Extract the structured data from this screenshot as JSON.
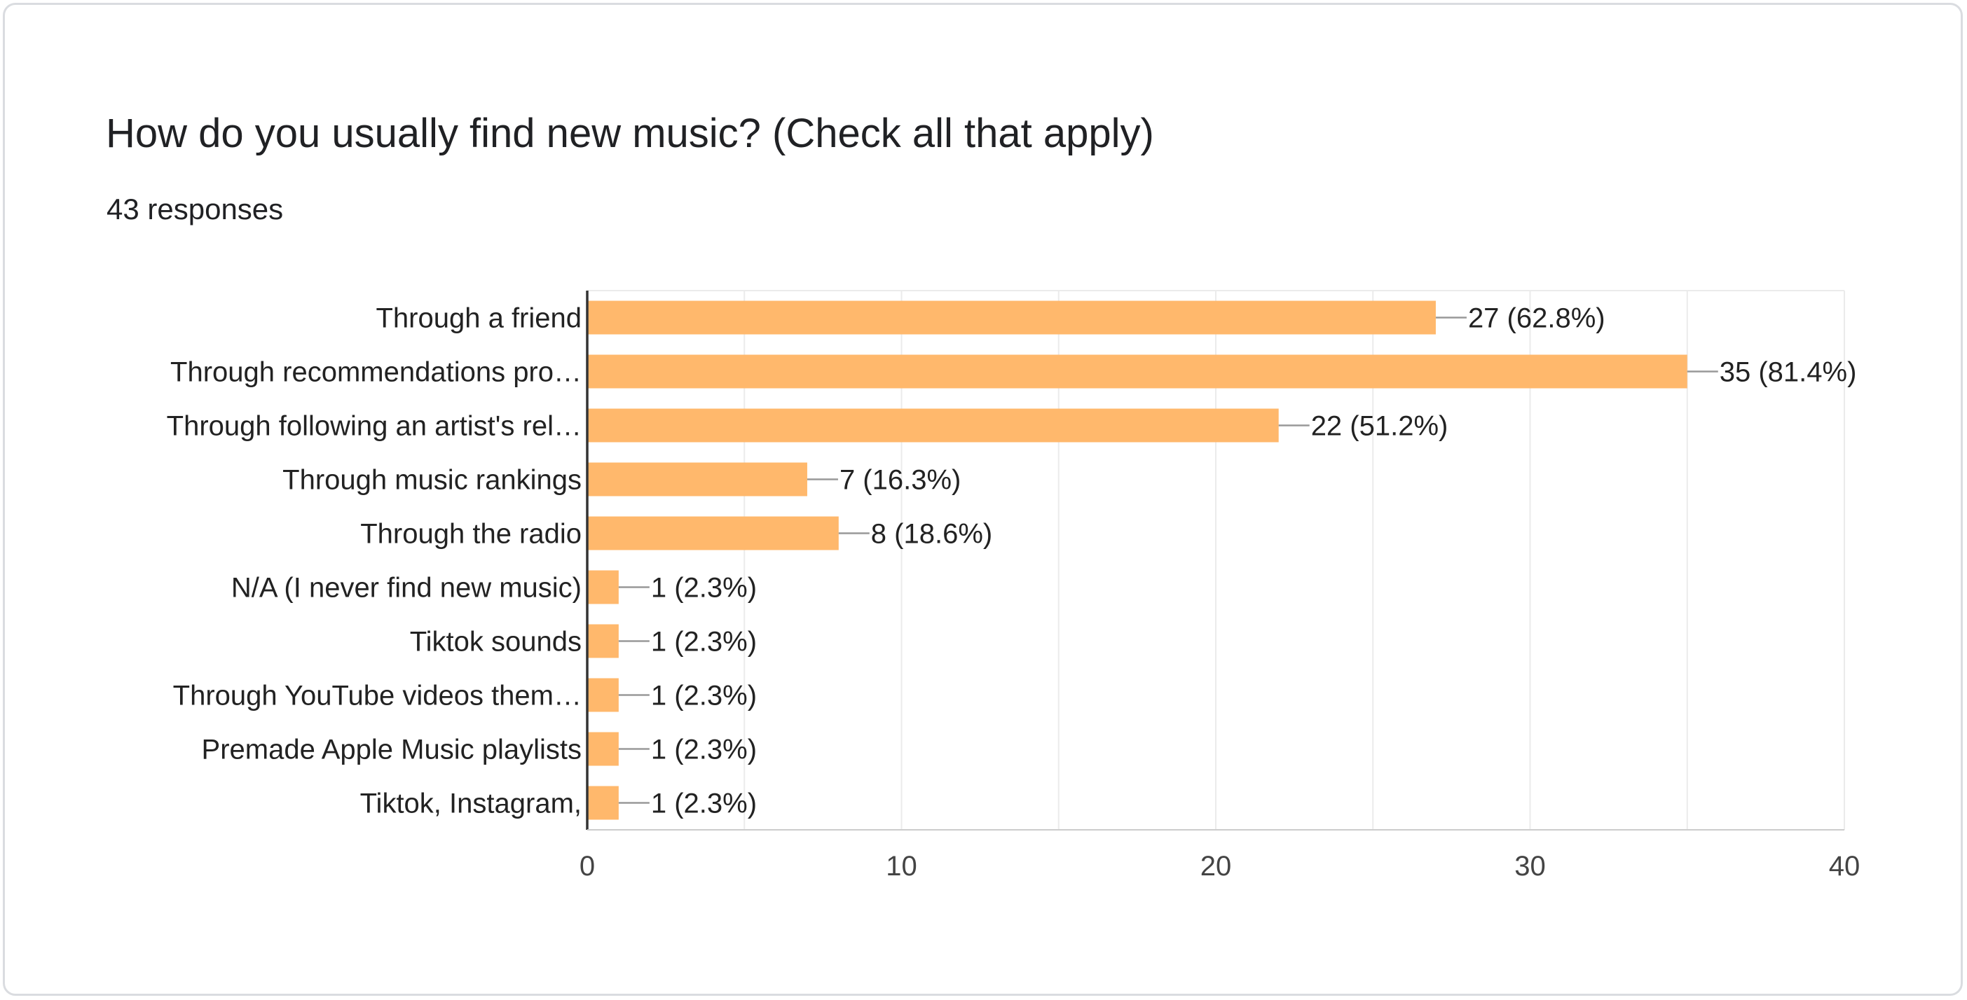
{
  "card": {
    "title": "How do you usually find new music? (Check all that apply)",
    "responses": "43 responses"
  },
  "chart_data": {
    "type": "bar",
    "orientation": "horizontal",
    "categories": [
      "Through a friend",
      "Through recommendations pro…",
      "Through following an artist's rel…",
      "Through music rankings",
      "Through the radio",
      "N/A (I never find new music)",
      "Tiktok sounds",
      "Through YouTube videos them…",
      "Premade Apple Music playlists",
      "Tiktok, Instagram,"
    ],
    "values": [
      27,
      35,
      22,
      7,
      8,
      1,
      1,
      1,
      1,
      1
    ],
    "data_labels": [
      "27 (62.8%)",
      "35 (81.4%)",
      "22 (51.2%)",
      "7 (16.3%)",
      "8 (18.6%)",
      "1 (2.3%)",
      "1 (2.3%)",
      "1 (2.3%)",
      "1 (2.3%)",
      "1 (2.3%)"
    ],
    "xlim": [
      0,
      40
    ],
    "x_ticks": [
      "0",
      "10",
      "20",
      "30",
      "40"
    ],
    "grid": true,
    "colors": {
      "bar": "#ffb86c",
      "grid": "#ebebeb",
      "axis": "#333333",
      "text": "#222222"
    }
  }
}
